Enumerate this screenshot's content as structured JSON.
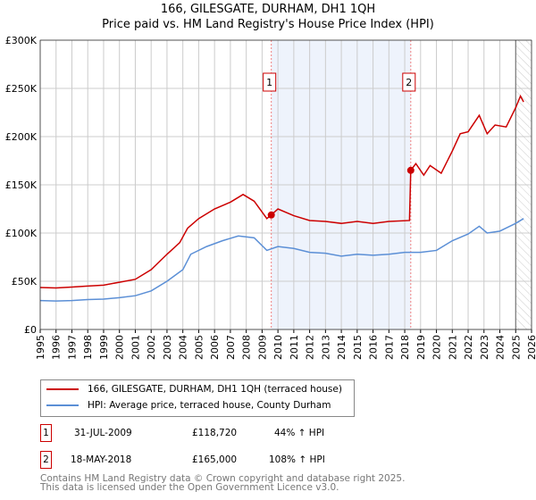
{
  "chart_data": {
    "type": "line",
    "title": "166, GILESGATE, DURHAM, DH1 1QH",
    "subtitle": "Price paid vs. HM Land Registry's House Price Index (HPI)",
    "xlim": [
      1995,
      2026
    ],
    "ylim": [
      0,
      300000
    ],
    "x_ticks": [
      "1995",
      "1996",
      "1997",
      "1998",
      "1999",
      "2000",
      "2001",
      "2002",
      "2003",
      "2004",
      "2005",
      "2006",
      "2007",
      "2008",
      "2009",
      "2010",
      "2011",
      "2012",
      "2013",
      "2014",
      "2015",
      "2016",
      "2017",
      "2018",
      "2019",
      "2020",
      "2021",
      "2022",
      "2023",
      "2024",
      "2025",
      "2026"
    ],
    "y_ticks": [
      {
        "v": 0,
        "label": "£0"
      },
      {
        "v": 50000,
        "label": "£50K"
      },
      {
        "v": 100000,
        "label": "£100K"
      },
      {
        "v": 150000,
        "label": "£150K"
      },
      {
        "v": 200000,
        "label": "£200K"
      },
      {
        "v": 250000,
        "label": "£250K"
      },
      {
        "v": 300000,
        "label": "£300K"
      }
    ],
    "grid": true,
    "shaded_range": [
      2009.58,
      2018.38
    ],
    "projection_start": 2025.0,
    "series": [
      {
        "name": "166, GILESGATE, DURHAM, DH1 1QH (terraced house)",
        "color": "#cc0000",
        "x": [
          1995,
          1996,
          1997,
          1998,
          1999,
          2000,
          2001,
          2002,
          2003,
          2003.8,
          2004.3,
          2005,
          2006,
          2007,
          2007.8,
          2008.5,
          2009.3,
          2009.58,
          2010,
          2011,
          2012,
          2013,
          2014,
          2015,
          2016,
          2017,
          2018.3,
          2018.38,
          2018.7,
          2019.2,
          2019.6,
          2020.3,
          2021,
          2021.5,
          2022,
          2022.7,
          2023.2,
          2023.7,
          2024.4,
          2025,
          2025.3,
          2025.5
        ],
        "y": [
          43500,
          43000,
          44000,
          45000,
          46000,
          49000,
          52000,
          62000,
          78000,
          90000,
          105000,
          115000,
          125000,
          132000,
          140000,
          133000,
          115000,
          118720,
          125000,
          118000,
          113000,
          112000,
          110000,
          112000,
          110000,
          112000,
          113000,
          165000,
          172000,
          160000,
          170000,
          162000,
          185000,
          203000,
          205000,
          222000,
          203000,
          212000,
          210000,
          230000,
          242000,
          236000
        ]
      },
      {
        "name": "HPI: Average price, terraced house, County Durham",
        "color": "#5b8fd6",
        "x": [
          1995,
          1996,
          1997,
          1998,
          1999,
          2000,
          2001,
          2002,
          2003,
          2004,
          2004.5,
          2005.5,
          2006.5,
          2007.5,
          2008.5,
          2009.3,
          2010,
          2011,
          2012,
          2013,
          2014,
          2015,
          2016,
          2017,
          2018,
          2019,
          2020,
          2021,
          2022,
          2022.7,
          2023.2,
          2024,
          2025,
          2025.5
        ],
        "y": [
          30000,
          29500,
          30000,
          31000,
          31500,
          33000,
          35000,
          40000,
          50000,
          62000,
          78000,
          86000,
          92000,
          97000,
          95000,
          82000,
          86000,
          84000,
          80000,
          79000,
          76000,
          78000,
          77000,
          78000,
          80000,
          80000,
          82000,
          92000,
          99000,
          107000,
          100000,
          102000,
          110000,
          115000
        ]
      }
    ],
    "sales": [
      {
        "id": "1",
        "x": 2009.58,
        "y": 118720
      },
      {
        "id": "2",
        "x": 2018.38,
        "y": 165000
      }
    ]
  },
  "legend": {
    "red": "166, GILESGATE, DURHAM, DH1 1QH (terraced house)",
    "blue": "HPI: Average price, terraced house, County Durham"
  },
  "table": [
    {
      "id": "1",
      "date": "31-JUL-2009",
      "price": "£118,720",
      "hpi": "44% ↑ HPI"
    },
    {
      "id": "2",
      "date": "18-MAY-2018",
      "price": "£165,000",
      "hpi": "108% ↑ HPI"
    }
  ],
  "footer": [
    "Contains HM Land Registry data © Crown copyright and database right 2025.",
    "This data is licensed under the Open Government Licence v3.0."
  ]
}
